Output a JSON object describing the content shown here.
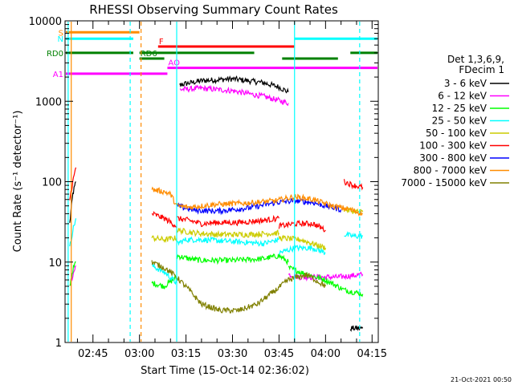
{
  "chart_data": {
    "type": "line",
    "title": "RHESSI Observing Summary Count Rates",
    "xlabel": "Start Time (15-Oct-14 02:36:02)",
    "ylabel": "Count Rate (s⁻¹ detector⁻¹)",
    "yscale": "log",
    "ylim": [
      1,
      10000
    ],
    "xlim_minutes": [
      36,
      137
    ],
    "x_ticks": [
      {
        "label": "02:45",
        "value": 45
      },
      {
        "label": "03:00",
        "value": 60
      },
      {
        "label": "03:15",
        "value": 75
      },
      {
        "label": "03:30",
        "value": 90
      },
      {
        "label": "03:45",
        "value": 105
      },
      {
        "label": "04:00",
        "value": 120
      },
      {
        "label": "04:15",
        "value": 135
      }
    ],
    "y_ticks": [
      {
        "label": "1",
        "value": 1
      },
      {
        "label": "10",
        "value": 10
      },
      {
        "label": "100",
        "value": 100
      },
      {
        "label": "1000",
        "value": 1000
      },
      {
        "label": "10000",
        "value": 10000
      }
    ],
    "legend": {
      "title_lines": [
        "Det 1,3,6,9,",
        "FDecim 1"
      ],
      "placement": "right"
    },
    "series": [
      {
        "name": "3 - 6 keV",
        "color": "#000000",
        "segments": [
          [
            [
              37.5,
              30
            ],
            [
              38.5,
              70
            ],
            [
              39.5,
              100
            ]
          ],
          [
            [
              73,
              1600
            ],
            [
              80,
              1800
            ],
            [
              90,
              1900
            ],
            [
              100,
              1700
            ],
            [
              105,
              1500
            ],
            [
              108,
              1300
            ]
          ],
          [
            [
              128,
              1.5
            ],
            [
              130,
              1.5
            ],
            [
              132,
              1.5
            ]
          ]
        ]
      },
      {
        "name": "6 - 12 keV",
        "color": "#ff00ff",
        "segments": [
          [
            [
              37.5,
              5
            ],
            [
              38.5,
              7
            ],
            [
              39.5,
              9
            ]
          ],
          [
            [
              73,
              1400
            ],
            [
              80,
              1450
            ],
            [
              90,
              1350
            ],
            [
              100,
              1150
            ],
            [
              108,
              950
            ]
          ],
          [
            [
              108,
              7
            ],
            [
              112,
              6.5
            ],
            [
              118,
              6.5
            ],
            [
              124,
              6.5
            ],
            [
              132,
              7
            ]
          ]
        ]
      },
      {
        "name": "12 - 25 keV",
        "color": "#00ff00",
        "segments": [
          [
            [
              37.5,
              5
            ],
            [
              38.5,
              8
            ],
            [
              39.5,
              10
            ]
          ],
          [
            [
              64,
              5.5
            ],
            [
              68,
              5
            ],
            [
              72,
              6.5
            ]
          ],
          [
            [
              72,
              12
            ],
            [
              76,
              11
            ],
            [
              80,
              10.5
            ],
            [
              90,
              10.5
            ],
            [
              100,
              11
            ],
            [
              105,
              12
            ],
            [
              108,
              10
            ]
          ],
          [
            [
              108,
              8.5
            ],
            [
              114,
              7
            ],
            [
              120,
              6
            ],
            [
              126,
              4.5
            ],
            [
              132,
              4
            ]
          ]
        ]
      },
      {
        "name": "25 - 50 keV",
        "color": "#00ffff",
        "segments": [
          [
            [
              37.5,
              15
            ],
            [
              38.5,
              25
            ],
            [
              39.5,
              35
            ]
          ],
          [
            [
              64,
              9
            ],
            [
              68,
              7.5
            ],
            [
              72,
              5.5
            ]
          ],
          [
            [
              72,
              17
            ],
            [
              75,
              19
            ],
            [
              80,
              19
            ],
            [
              90,
              18
            ],
            [
              100,
              17
            ],
            [
              105,
              19
            ]
          ],
          [
            [
              105,
              13
            ],
            [
              110,
              15
            ],
            [
              116,
              15
            ],
            [
              120,
              13
            ]
          ],
          [
            [
              126,
              22
            ],
            [
              129,
              21
            ],
            [
              132,
              21
            ]
          ]
        ]
      },
      {
        "name": "50 - 100 keV",
        "color": "#cccc00",
        "segments": [
          [
            [
              64,
              20
            ],
            [
              68,
              19
            ],
            [
              72,
              20
            ]
          ],
          [
            [
              72,
              25
            ],
            [
              78,
              23
            ],
            [
              85,
              22
            ],
            [
              95,
              22
            ],
            [
              105,
              23
            ]
          ],
          [
            [
              105,
              20
            ],
            [
              112,
              19
            ],
            [
              120,
              15
            ]
          ],
          [
            [
              126,
              45
            ],
            [
              129,
              43
            ],
            [
              132,
              42
            ]
          ]
        ]
      },
      {
        "name": "100 - 300 keV",
        "color": "#ff0000",
        "segments": [
          [
            [
              37.5,
              60
            ],
            [
              38.5,
              100
            ],
            [
              39.5,
              150
            ]
          ],
          [
            [
              64,
              40
            ],
            [
              68,
              35
            ],
            [
              72,
              28
            ]
          ],
          [
            [
              72,
              35
            ],
            [
              76,
              33
            ],
            [
              80,
              30
            ],
            [
              85,
              31
            ],
            [
              92,
              31
            ],
            [
              100,
              33
            ],
            [
              105,
              35
            ]
          ],
          [
            [
              105,
              28
            ],
            [
              110,
              30
            ],
            [
              116,
              30
            ],
            [
              120,
              25
            ]
          ],
          [
            [
              126,
              100
            ],
            [
              129,
              90
            ],
            [
              132,
              85
            ]
          ]
        ]
      },
      {
        "name": "300 - 800 keV",
        "color": "#0000ff",
        "segments": [
          [
            [
              72,
              50
            ],
            [
              78,
              44
            ],
            [
              85,
              43
            ],
            [
              95,
              47
            ],
            [
              104,
              55
            ],
            [
              110,
              58
            ],
            [
              116,
              55
            ],
            [
              120,
              50
            ],
            [
              125,
              45
            ]
          ]
        ]
      },
      {
        "name": "800 - 7000 keV",
        "color": "#ff8c00",
        "segments": [
          [
            [
              64,
              80
            ],
            [
              68,
              75
            ],
            [
              70,
              70
            ],
            [
              72,
              50
            ],
            [
              76,
              48
            ],
            [
              84,
              52
            ],
            [
              94,
              54
            ],
            [
              104,
              58
            ],
            [
              110,
              65
            ],
            [
              116,
              60
            ],
            [
              122,
              50
            ],
            [
              128,
              45
            ],
            [
              132,
              40
            ]
          ]
        ]
      },
      {
        "name": "7000 - 15000 keV",
        "color": "#808000",
        "segments": [
          [
            [
              64,
              10
            ],
            [
              68,
              8.5
            ],
            [
              70,
              7.5
            ],
            [
              72,
              6.5
            ],
            [
              76,
              4.5
            ],
            [
              80,
              3
            ],
            [
              86,
              2.5
            ],
            [
              92,
              2.5
            ],
            [
              98,
              3
            ],
            [
              104,
              4.5
            ],
            [
              108,
              6
            ],
            [
              114,
              7
            ],
            [
              120,
              5
            ]
          ]
        ]
      }
    ],
    "flag_bars": [
      {
        "label": "S",
        "color": "#ff8c00",
        "start": 36,
        "end": 60,
        "level": 7200
      },
      {
        "label": "N",
        "color": "#00ffff",
        "start": 36,
        "end": 58,
        "level": 6000
      },
      {
        "label": "",
        "color": "#00ffff",
        "start": 110,
        "end": 137,
        "level": 6000
      },
      {
        "label": "F",
        "color": "#ff0000",
        "start": 66,
        "end": 110,
        "level": 4800
      },
      {
        "label": "RD0",
        "color": "#008000",
        "start": 36,
        "end": 58,
        "level": 4000
      },
      {
        "label": "",
        "color": "#008000",
        "start": 60,
        "end": 97,
        "level": 4000
      },
      {
        "label": "",
        "color": "#008000",
        "start": 128,
        "end": 137,
        "level": 4000
      },
      {
        "label": "RD6",
        "color": "#008000",
        "start": 60,
        "end": 68,
        "level": 3400
      },
      {
        "label": "",
        "color": "#008000",
        "start": 106,
        "end": 124,
        "level": 3400
      },
      {
        "label": "AO",
        "color": "#ff00ff",
        "start": 69,
        "end": 137,
        "level": 2600
      },
      {
        "label": "A1",
        "color": "#ff00ff",
        "start": 36,
        "end": 69,
        "level": 2200
      }
    ],
    "vertical_markers": [
      {
        "x": 37,
        "color": "#00ffff",
        "style": "solid"
      },
      {
        "x": 38,
        "color": "#ff8c00",
        "style": "solid"
      },
      {
        "x": 57,
        "color": "#00ffff",
        "style": "dashed"
      },
      {
        "x": 60.5,
        "color": "#ff8c00",
        "style": "dashed"
      },
      {
        "x": 72,
        "color": "#00ffff",
        "style": "solid"
      },
      {
        "x": 110,
        "color": "#00ffff",
        "style": "solid"
      },
      {
        "x": 131,
        "color": "#00ffff",
        "style": "dashed"
      }
    ]
  },
  "footer": {
    "timestamp": "21-Oct-2021 00:50"
  }
}
